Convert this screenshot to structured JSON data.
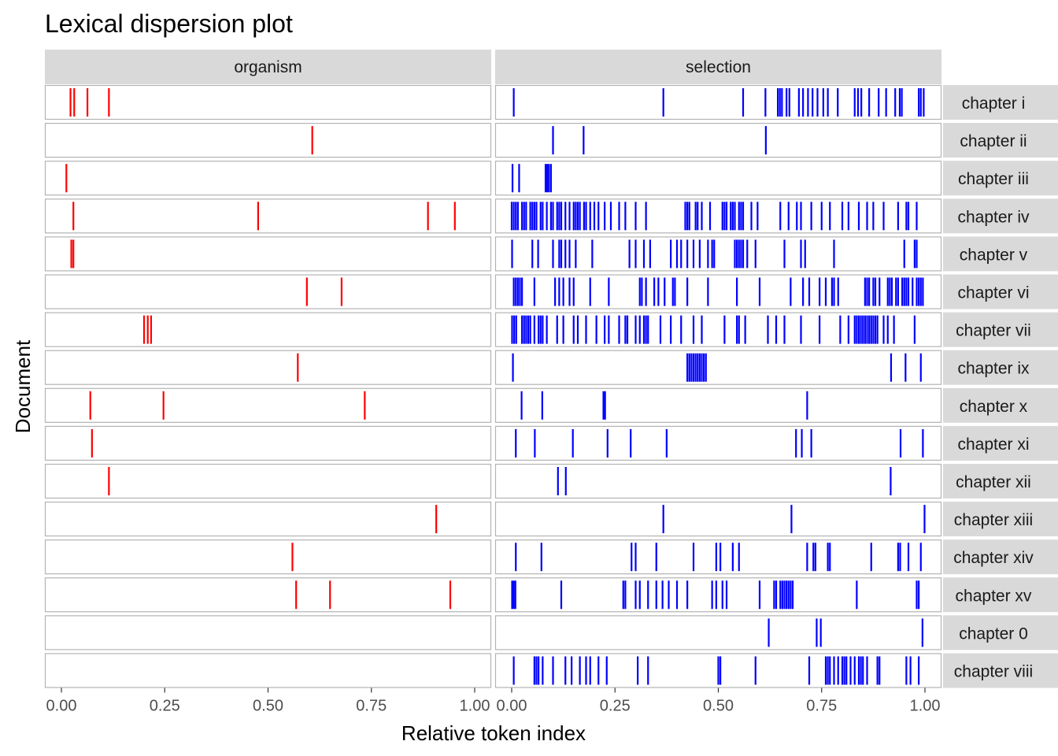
{
  "chart_data": {
    "type": "dispersion",
    "title": "Lexical dispersion plot",
    "xlabel": "Relative token index",
    "ylabel": "Document",
    "xlim": [
      -0.04,
      1.04
    ],
    "x_ticks": [
      0,
      0.25,
      0.5,
      0.75,
      1
    ],
    "x_tick_labels": [
      "0.00",
      "0.25",
      "0.50",
      "0.75",
      "1.00"
    ],
    "facets": [
      {
        "name": "organism",
        "color": "#ff0000"
      },
      {
        "name": "selection",
        "color": "#0000ff"
      }
    ],
    "documents": [
      "chapter i",
      "chapter ii",
      "chapter iii",
      "chapter iv",
      "chapter v",
      "chapter vi",
      "chapter vii",
      "chapter ix",
      "chapter x",
      "chapter xi",
      "chapter xii",
      "chapter xiii",
      "chapter xiv",
      "chapter xv",
      "chapter 0",
      "chapter viii"
    ],
    "data": {
      "organism": {
        "chapter i": [
          0.022,
          0.031,
          0.063,
          0.115
        ],
        "chapter ii": [
          0.607
        ],
        "chapter iii": [
          0.012
        ],
        "chapter iv": [
          0.029,
          0.476,
          0.887,
          0.952
        ],
        "chapter v": [
          0.024,
          0.029
        ],
        "chapter vi": [
          0.594,
          0.678
        ],
        "chapter vii": [
          0.2,
          0.209,
          0.217
        ],
        "chapter ix": [
          0.572
        ],
        "chapter x": [
          0.07,
          0.247,
          0.734
        ],
        "chapter xi": [
          0.074
        ],
        "chapter xii": [
          0.115
        ],
        "chapter xiii": [
          0.907
        ],
        "chapter xiv": [
          0.559
        ],
        "chapter xv": [
          0.568,
          0.65,
          0.941
        ],
        "chapter 0": [],
        "chapter viii": []
      },
      "selection": {
        "chapter i": [
          0.005,
          0.367,
          0.56,
          0.614,
          0.644,
          0.649,
          0.654,
          0.665,
          0.672,
          0.695,
          0.705,
          0.717,
          0.728,
          0.74,
          0.754,
          0.765,
          0.789,
          0.83,
          0.838,
          0.846,
          0.865,
          0.888,
          0.906,
          0.928,
          0.939,
          0.944,
          0.985,
          0.99,
          0.997
        ],
        "chapter ii": [
          0.1,
          0.174,
          0.615
        ],
        "chapter iii": [
          0.002,
          0.018,
          0.082,
          0.086,
          0.09,
          0.095
        ],
        "chapter iv": [
          0.0,
          0.005,
          0.01,
          0.015,
          0.025,
          0.03,
          0.035,
          0.045,
          0.05,
          0.055,
          0.06,
          0.07,
          0.075,
          0.085,
          0.095,
          0.1,
          0.11,
          0.115,
          0.12,
          0.13,
          0.14,
          0.15,
          0.155,
          0.16,
          0.165,
          0.175,
          0.18,
          0.19,
          0.2,
          0.21,
          0.225,
          0.24,
          0.26,
          0.275,
          0.3,
          0.325,
          0.42,
          0.425,
          0.43,
          0.445,
          0.45,
          0.46,
          0.48,
          0.51,
          0.515,
          0.52,
          0.53,
          0.535,
          0.54,
          0.55,
          0.555,
          0.56,
          0.58,
          0.595,
          0.65,
          0.67,
          0.69,
          0.7,
          0.725,
          0.75,
          0.77,
          0.8,
          0.815,
          0.84,
          0.86,
          0.875,
          0.9,
          0.935,
          0.955,
          0.96,
          0.98
        ],
        "chapter v": [
          0.001,
          0.05,
          0.064,
          0.1,
          0.115,
          0.12,
          0.13,
          0.14,
          0.155,
          0.195,
          0.285,
          0.3,
          0.32,
          0.335,
          0.385,
          0.4,
          0.41,
          0.425,
          0.44,
          0.455,
          0.475,
          0.485,
          0.49,
          0.54,
          0.545,
          0.55,
          0.555,
          0.56,
          0.57,
          0.59,
          0.66,
          0.7,
          0.71,
          0.78,
          0.95,
          0.975,
          0.98
        ],
        "chapter vi": [
          0.005,
          0.01,
          0.015,
          0.02,
          0.025,
          0.055,
          0.105,
          0.115,
          0.125,
          0.14,
          0.15,
          0.19,
          0.235,
          0.31,
          0.315,
          0.325,
          0.345,
          0.355,
          0.37,
          0.39,
          0.395,
          0.425,
          0.475,
          0.545,
          0.6,
          0.675,
          0.705,
          0.72,
          0.745,
          0.76,
          0.775,
          0.78,
          0.79,
          0.855,
          0.86,
          0.865,
          0.875,
          0.88,
          0.89,
          0.91,
          0.915,
          0.92,
          0.93,
          0.935,
          0.945,
          0.95,
          0.955,
          0.96,
          0.97,
          0.98,
          0.985,
          0.99,
          0.995
        ],
        "chapter vii": [
          0.001,
          0.006,
          0.011,
          0.025,
          0.03,
          0.035,
          0.04,
          0.045,
          0.055,
          0.065,
          0.07,
          0.075,
          0.085,
          0.11,
          0.125,
          0.15,
          0.16,
          0.18,
          0.205,
          0.225,
          0.235,
          0.26,
          0.275,
          0.28,
          0.3,
          0.31,
          0.32,
          0.325,
          0.33,
          0.36,
          0.385,
          0.41,
          0.44,
          0.46,
          0.515,
          0.545,
          0.55,
          0.565,
          0.62,
          0.64,
          0.66,
          0.7,
          0.745,
          0.795,
          0.815,
          0.83,
          0.835,
          0.84,
          0.845,
          0.85,
          0.855,
          0.86,
          0.865,
          0.87,
          0.875,
          0.88,
          0.885,
          0.9,
          0.91,
          0.925,
          0.975
        ],
        "chapter ix": [
          0.003,
          0.425,
          0.43,
          0.435,
          0.44,
          0.445,
          0.45,
          0.455,
          0.46,
          0.465,
          0.47,
          0.918,
          0.953,
          0.99
        ],
        "chapter x": [
          0.024,
          0.074,
          0.222,
          0.226,
          0.715
        ],
        "chapter xi": [
          0.01,
          0.056,
          0.148,
          0.232,
          0.288,
          0.375,
          0.688,
          0.702,
          0.725,
          0.941,
          0.995
        ],
        "chapter xii": [
          0.112,
          0.131,
          0.917
        ],
        "chapter xiii": [
          0.367,
          0.677,
          0.999
        ],
        "chapter xiv": [
          0.01,
          0.072,
          0.29,
          0.3,
          0.35,
          0.44,
          0.495,
          0.505,
          0.535,
          0.55,
          0.715,
          0.73,
          0.735,
          0.765,
          0.77,
          0.87,
          0.935,
          0.94,
          0.96,
          0.99
        ],
        "chapter xv": [
          0.001,
          0.005,
          0.009,
          0.12,
          0.27,
          0.275,
          0.3,
          0.31,
          0.33,
          0.35,
          0.365,
          0.38,
          0.4,
          0.425,
          0.485,
          0.495,
          0.51,
          0.52,
          0.6,
          0.635,
          0.64,
          0.65,
          0.655,
          0.66,
          0.665,
          0.67,
          0.675,
          0.68,
          0.835,
          0.98,
          0.985
        ],
        "chapter 0": [
          0.622,
          0.738,
          0.748,
          0.994
        ],
        "chapter viii": [
          0.005,
          0.055,
          0.06,
          0.065,
          0.075,
          0.1,
          0.13,
          0.145,
          0.165,
          0.18,
          0.19,
          0.21,
          0.23,
          0.305,
          0.33,
          0.5,
          0.505,
          0.59,
          0.72,
          0.76,
          0.765,
          0.77,
          0.78,
          0.79,
          0.8,
          0.805,
          0.81,
          0.82,
          0.83,
          0.84,
          0.845,
          0.85,
          0.86,
          0.885,
          0.89,
          0.955,
          0.965,
          0.985
        ]
      }
    },
    "grid": false,
    "legend": "none"
  }
}
